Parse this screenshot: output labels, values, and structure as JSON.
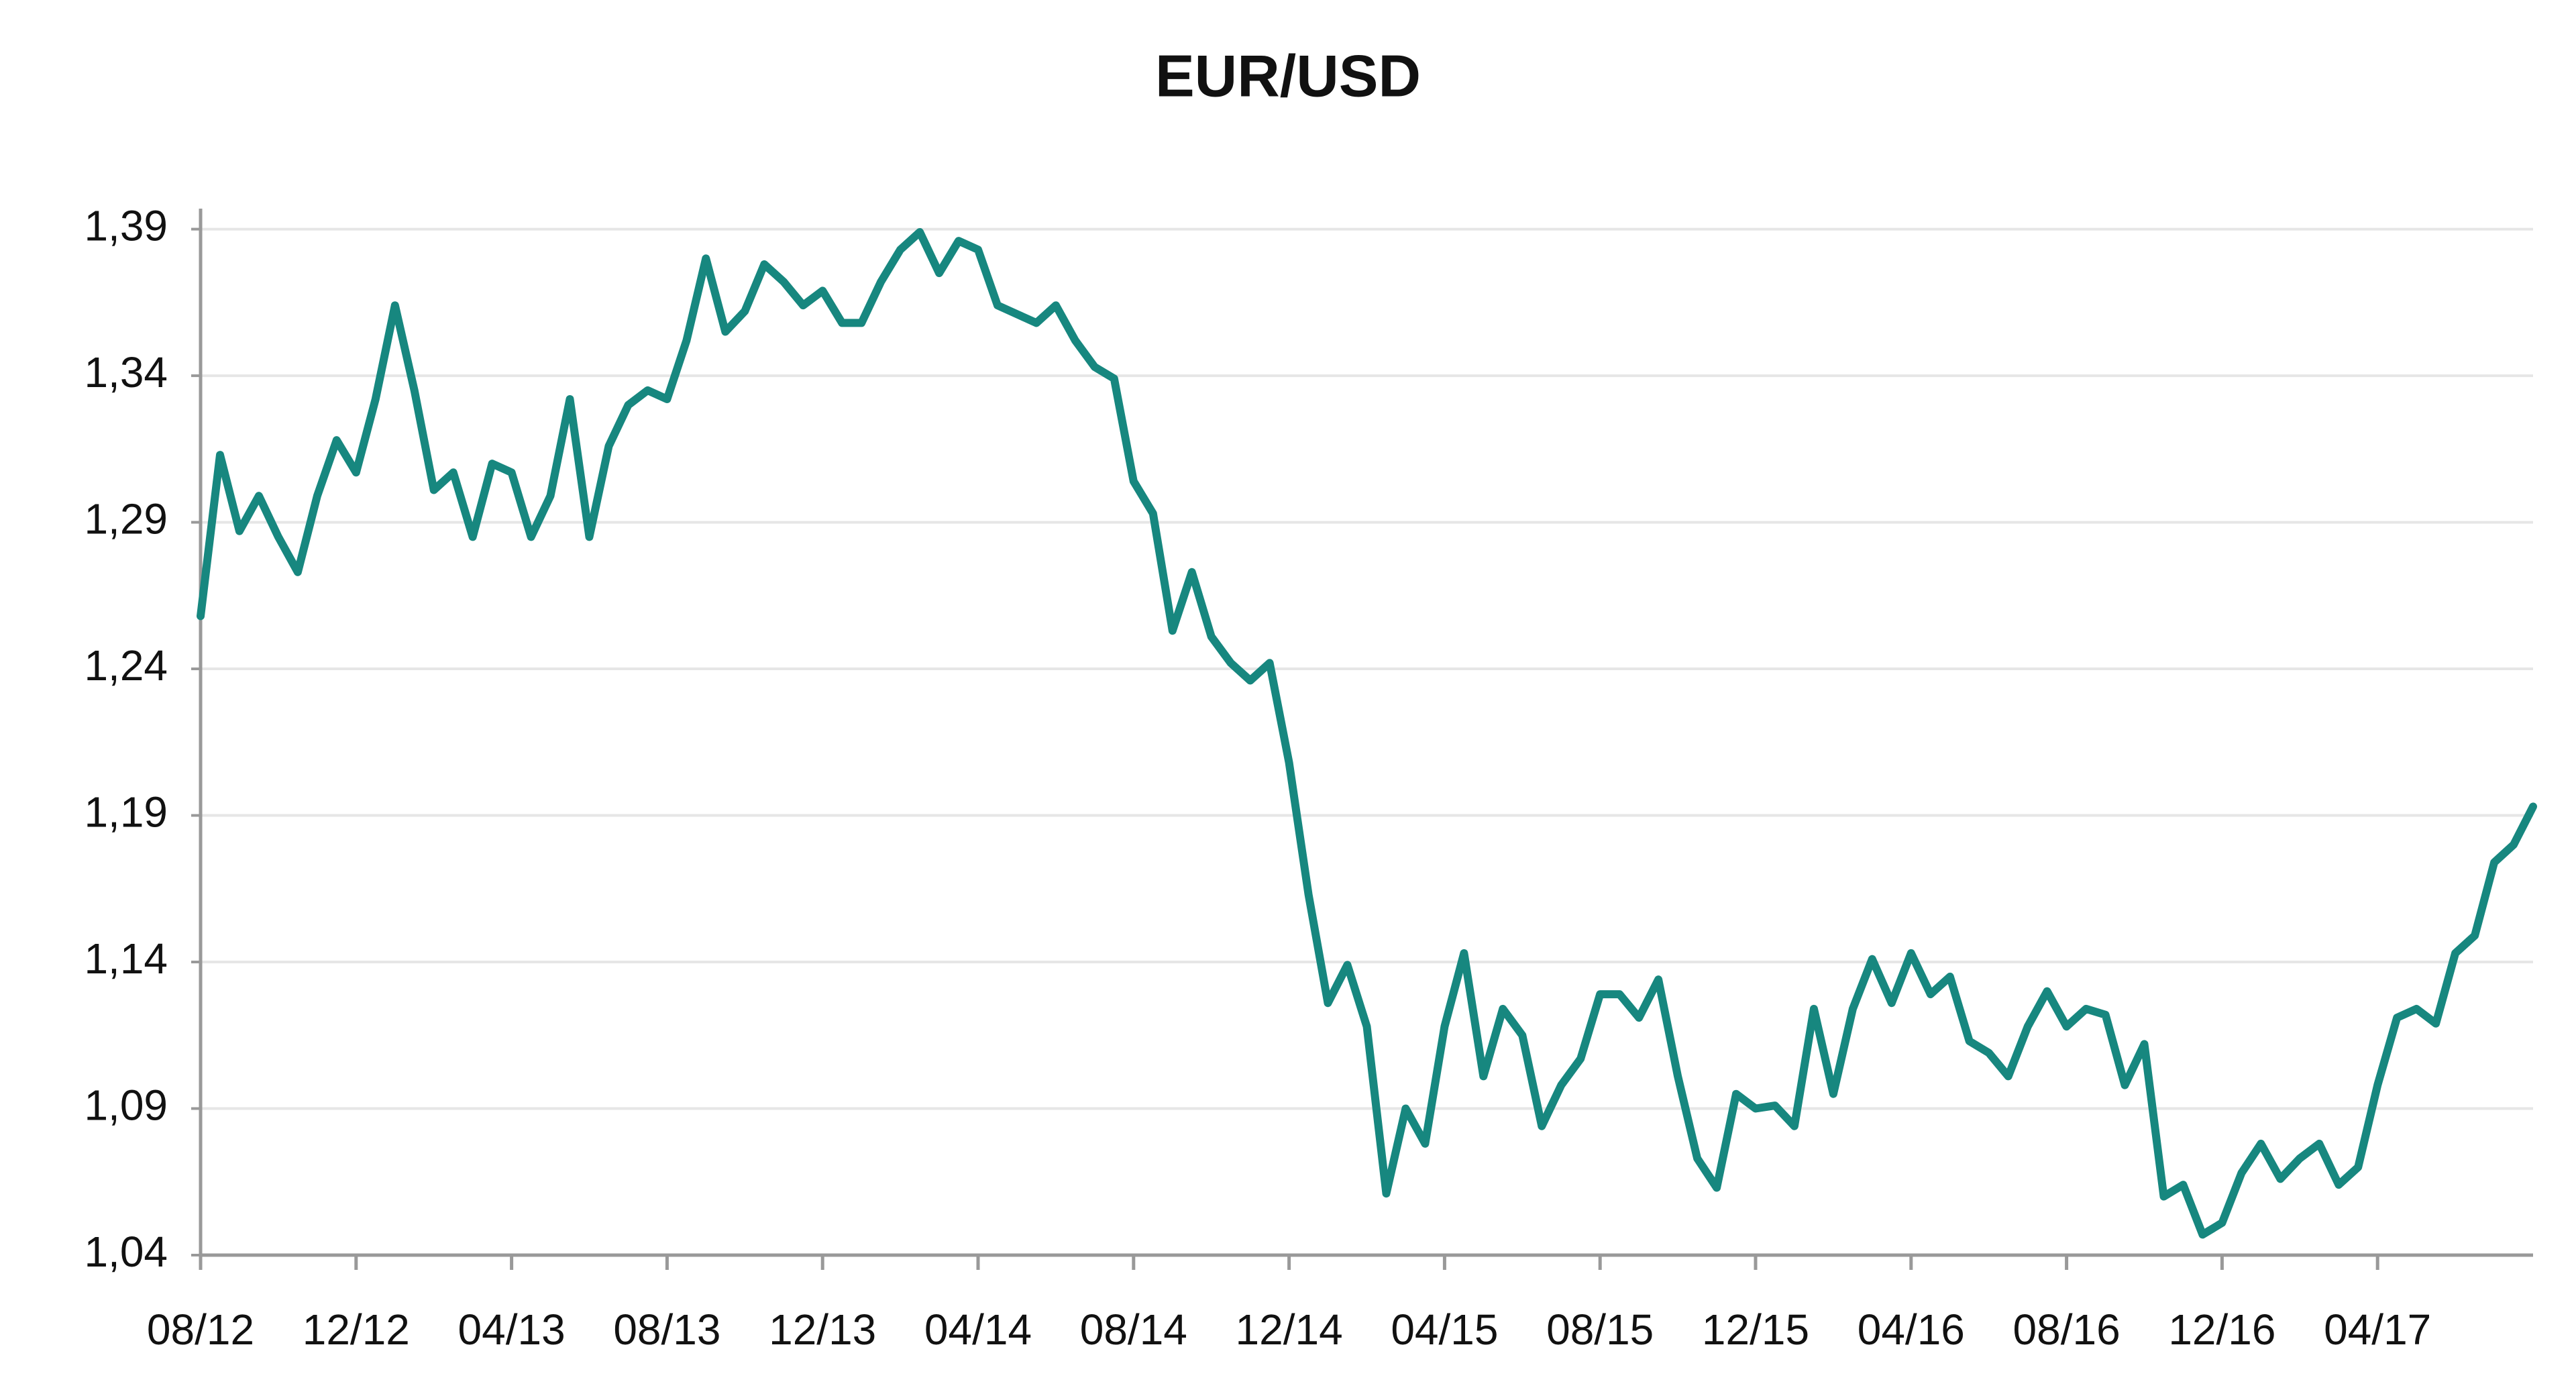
{
  "chart_data": {
    "type": "line",
    "title": "EUR/USD",
    "color": "#17877f",
    "grid": true,
    "ylim": [
      1.04,
      1.397
    ],
    "yticks": [
      {
        "value": 1.04,
        "label": "1,04"
      },
      {
        "value": 1.09,
        "label": "1,09"
      },
      {
        "value": 1.14,
        "label": "1,14"
      },
      {
        "value": 1.19,
        "label": "1,19"
      },
      {
        "value": 1.24,
        "label": "1,24"
      },
      {
        "value": 1.29,
        "label": "1,29"
      },
      {
        "value": 1.34,
        "label": "1,34"
      },
      {
        "value": 1.39,
        "label": "1,39"
      }
    ],
    "categories": [
      "08/12",
      null,
      null,
      null,
      null,
      null,
      null,
      null,
      "12/12",
      null,
      null,
      null,
      null,
      null,
      null,
      null,
      "04/13",
      null,
      null,
      null,
      null,
      null,
      null,
      null,
      "08/13",
      null,
      null,
      null,
      null,
      null,
      null,
      null,
      "12/13",
      null,
      null,
      null,
      null,
      null,
      null,
      null,
      "04/14",
      null,
      null,
      null,
      null,
      null,
      null,
      null,
      "08/14",
      null,
      null,
      null,
      null,
      null,
      null,
      null,
      "12/14",
      null,
      null,
      null,
      null,
      null,
      null,
      null,
      "04/15",
      null,
      null,
      null,
      null,
      null,
      null,
      null,
      "08/15",
      null,
      null,
      null,
      null,
      null,
      null,
      null,
      "12/15",
      null,
      null,
      null,
      null,
      null,
      null,
      null,
      "04/16",
      null,
      null,
      null,
      null,
      null,
      null,
      null,
      "08/16",
      null,
      null,
      null,
      null,
      null,
      null,
      null,
      "12/16",
      null,
      null,
      null,
      null,
      null,
      null,
      null,
      "04/17",
      null,
      null,
      null,
      null,
      null,
      null,
      null,
      null
    ],
    "values": [
      1.258,
      1.313,
      1.287,
      1.299,
      1.285,
      1.273,
      1.299,
      1.318,
      1.307,
      1.332,
      1.364,
      1.335,
      1.301,
      1.307,
      1.285,
      1.31,
      1.307,
      1.285,
      1.299,
      1.332,
      1.285,
      1.316,
      1.33,
      1.335,
      1.332,
      1.352,
      1.38,
      1.355,
      1.362,
      1.378,
      1.372,
      1.364,
      1.369,
      1.358,
      1.358,
      1.372,
      1.383,
      1.389,
      1.375,
      1.386,
      1.383,
      1.364,
      1.361,
      1.358,
      1.364,
      1.352,
      1.343,
      1.339,
      1.304,
      1.293,
      1.253,
      1.273,
      1.251,
      1.242,
      1.236,
      1.242,
      1.208,
      1.163,
      1.126,
      1.139,
      1.118,
      1.061,
      1.09,
      1.078,
      1.118,
      1.143,
      1.101,
      1.124,
      1.115,
      1.084,
      1.098,
      1.107,
      1.129,
      1.129,
      1.121,
      1.134,
      1.101,
      1.073,
      1.063,
      1.095,
      1.09,
      1.091,
      1.084,
      1.124,
      1.095,
      1.124,
      1.141,
      1.126,
      1.143,
      1.129,
      1.135,
      1.113,
      1.109,
      1.101,
      1.118,
      1.13,
      1.118,
      1.124,
      1.122,
      1.098,
      1.112,
      1.06,
      1.064,
      1.047,
      1.051,
      1.068,
      1.078,
      1.066,
      1.073,
      1.078,
      1.064,
      1.07,
      1.098,
      1.121,
      1.124,
      1.119,
      1.143,
      1.149,
      1.174,
      1.18,
      1.193
    ]
  }
}
